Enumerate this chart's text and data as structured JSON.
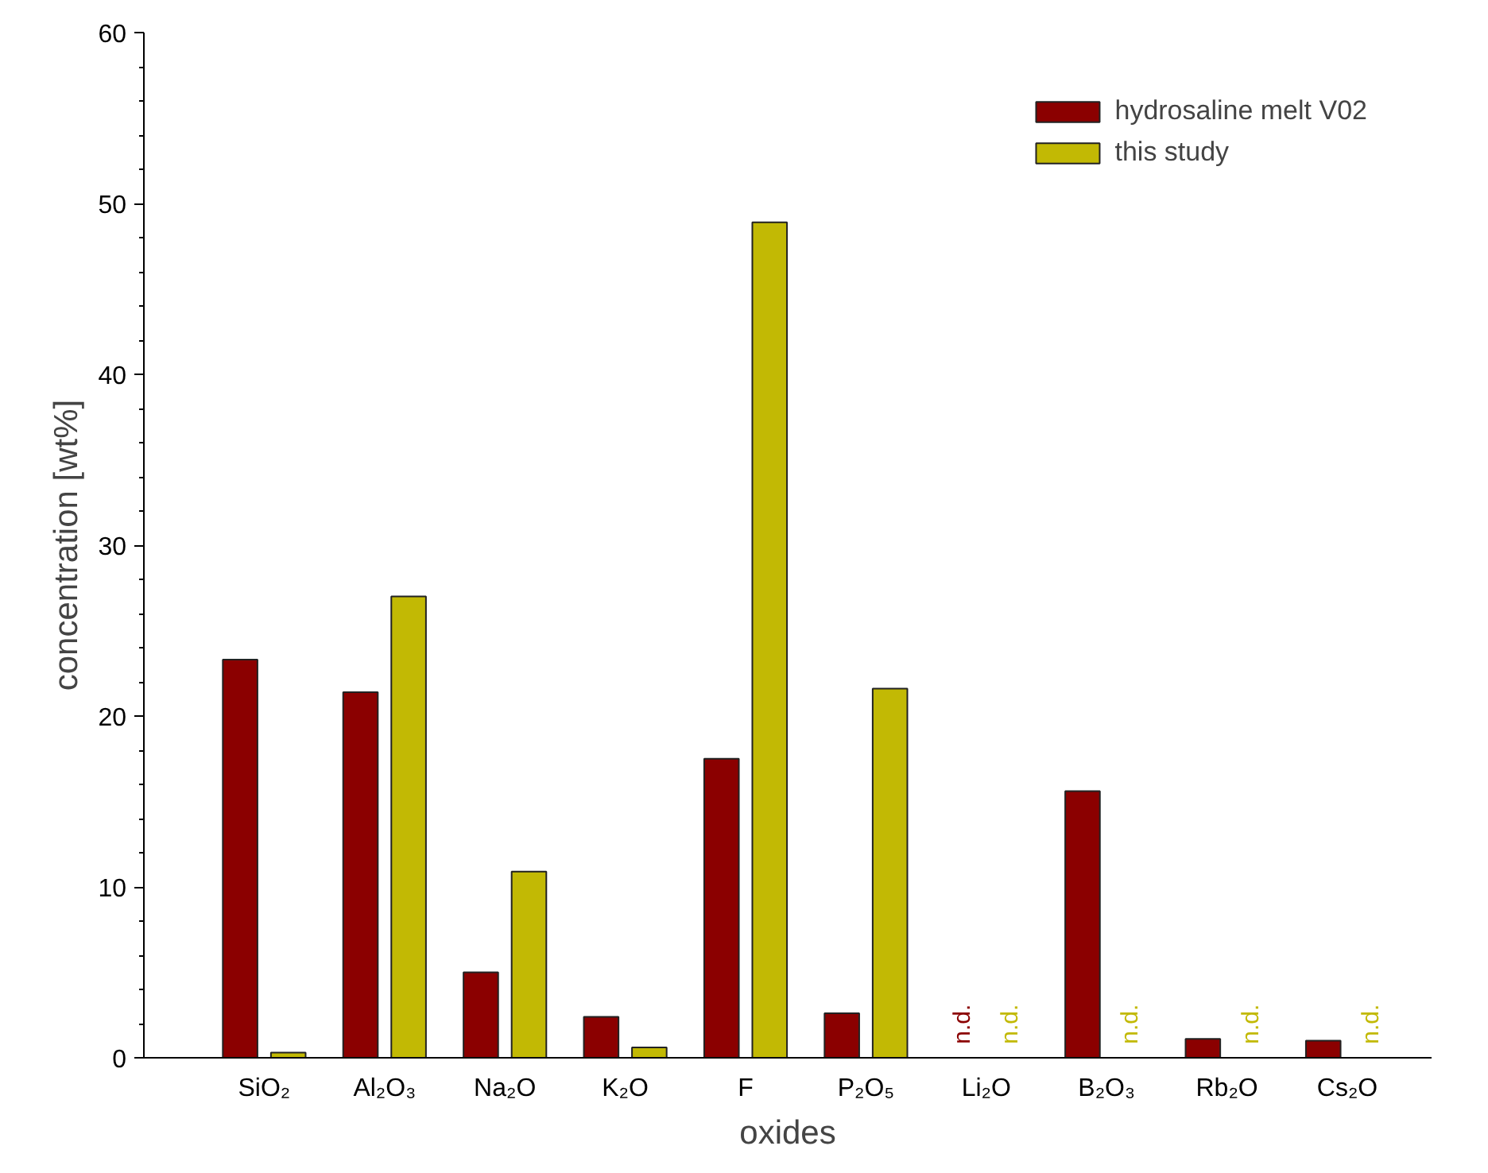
{
  "chart_data": {
    "type": "bar",
    "xlabel": "oxides",
    "ylabel": "concentration [wt%]",
    "categories": [
      "SiO₂",
      "Al₂O₃",
      "Na₂O",
      "K₂O",
      "F",
      "P₂O₅",
      "Li₂O",
      "B₂O₃",
      "Rb₂O",
      "Cs₂O"
    ],
    "series": [
      {
        "name": "hydrosaline melt V02",
        "color": "#8b0000",
        "values": [
          23.3,
          21.4,
          5.0,
          2.4,
          17.5,
          2.6,
          null,
          15.6,
          1.1,
          1.0
        ],
        "value_labels": [
          null,
          null,
          null,
          null,
          null,
          null,
          "n.d.",
          null,
          null,
          null
        ]
      },
      {
        "name": "this study",
        "color": "#c2b904",
        "values": [
          0.3,
          27.0,
          10.9,
          0.6,
          48.9,
          21.6,
          null,
          null,
          null,
          null
        ],
        "value_labels": [
          null,
          null,
          null,
          null,
          null,
          null,
          "n.d.",
          "n.d.",
          "n.d.",
          "n.d."
        ]
      }
    ],
    "ylim": [
      0,
      60
    ],
    "yticks": [
      0,
      10,
      20,
      30,
      40,
      50,
      60
    ],
    "grid": false,
    "legend": "top right"
  }
}
